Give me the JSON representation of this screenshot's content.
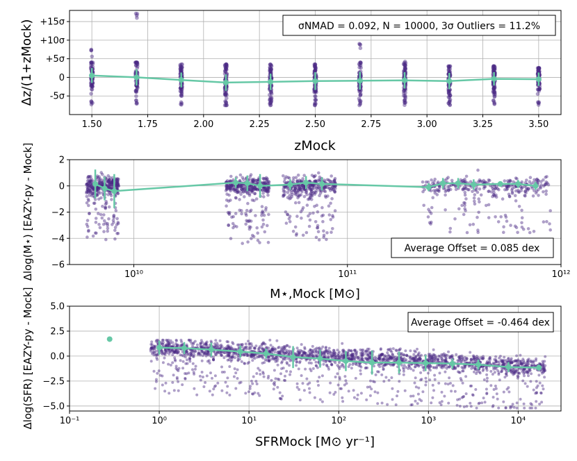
{
  "colors": {
    "scatter": "#4b2a86",
    "trend": "#66c8a6"
  },
  "chart_data": [
    {
      "type": "scatter",
      "xlabel": "zMock",
      "ylabel": "Δz/(1+zMock)",
      "xlim": [
        1.4,
        3.6
      ],
      "ylim": [
        -10,
        18
      ],
      "x_ticks": [
        "1.50",
        "1.75",
        "2.00",
        "2.25",
        "2.50",
        "2.75",
        "3.00",
        "3.25",
        "3.50"
      ],
      "y_ticks": [
        "+15σ",
        "+10σ",
        "+5σ",
        "0",
        "-5σ"
      ],
      "y_tick_values": [
        15,
        10,
        5,
        0,
        -5
      ],
      "annotation": "σNMAD = 0.092, N = 10000, 3σ Outliers = 11.2%",
      "series": [
        {
          "x": [
            1.5,
            1.7,
            1.9,
            2.1,
            2.3,
            2.5,
            2.7,
            2.9,
            3.1,
            3.3,
            3.5
          ],
          "y": [
            0.5,
            0.0,
            -0.7,
            -1.4,
            -1.2,
            -1.0,
            -0.9,
            -0.8,
            -1.0,
            -0.4,
            -0.5
          ],
          "err": [
            2.0,
            2.2,
            2.0,
            2.2,
            2.2,
            2.4,
            2.4,
            2.2,
            2.2,
            1.8,
            1.8
          ],
          "spread_low": [
            -7.5,
            -7.5,
            -7.5,
            -7.5,
            -7.5,
            -7.5,
            -7.5,
            -7.5,
            -7.5,
            -7.5,
            -7.5
          ],
          "spread_high": [
            7.5,
            17.5,
            3.5,
            3.5,
            3.5,
            3.5,
            9.5,
            4.5,
            3.0,
            3.0,
            2.5
          ]
        }
      ],
      "grid": true
    },
    {
      "type": "scatter",
      "xlabel": "M⋆,Mock [M⊙]",
      "ylabel": "Δlog(M⋆) [EAZY-py - Mock]",
      "xscale": "log",
      "xlim": [
        5000000000.0,
        1000000000000.0
      ],
      "ylim": [
        -6,
        2
      ],
      "x_ticks": [
        "10¹⁰",
        "10¹¹",
        "10¹²"
      ],
      "y_ticks": [
        "2",
        "0",
        "−2",
        "−4",
        "−6"
      ],
      "y_tick_values": [
        2,
        0,
        -2,
        -4,
        -6
      ],
      "annotation": "Average Offset = 0.085 dex",
      "clusters": [
        {
          "xmin": 6000000000.0,
          "xmax": 8500000000.0,
          "ylo": -4.1,
          "yhi": 1.5
        },
        {
          "xmin": 27000000000.0,
          "xmax": 43000000000.0,
          "ylo": -4.5,
          "yhi": 1.5
        },
        {
          "xmin": 50000000000.0,
          "xmax": 88000000000.0,
          "ylo": -4.2,
          "yhi": 1.5
        },
        {
          "xmin": 220000000000.0,
          "xmax": 900000000000.0,
          "ylo": -3.6,
          "yhi": 1.2
        }
      ],
      "series": [
        {
          "x": [
            6600000000.0,
            7300000000.0,
            8100000000.0,
            30000000000.0,
            34000000000.0,
            39000000000.0,
            54000000000.0,
            64000000000.0,
            76000000000.0,
            240000000000.0,
            280000000000.0,
            330000000000.0,
            390000000000.0,
            520000000000.0,
            630000000000.0,
            760000000000.0
          ],
          "y": [
            0.15,
            -0.2,
            -0.4,
            0.25,
            0.2,
            0.0,
            0.1,
            0.25,
            0.15,
            -0.1,
            0.2,
            0.2,
            0.1,
            0.15,
            0.15,
            0.0
          ],
          "err": [
            1.1,
            0.9,
            1.3,
            0.4,
            0.6,
            0.9,
            0.4,
            0.5,
            0.5,
            0.3,
            0.4,
            0.4,
            0.4,
            0.2,
            0.3,
            0.3
          ]
        }
      ],
      "grid": true
    },
    {
      "type": "scatter",
      "xlabel": "SFRMock [M⊙ yr⁻¹]",
      "ylabel": "Δlog(SFR) [EAZY-py - Mock]",
      "xscale": "log",
      "xlim": [
        0.1,
        30000
      ],
      "ylim": [
        -5.5,
        5
      ],
      "x_ticks": [
        "10⁻¹",
        "10⁰",
        "10¹",
        "10²",
        "10³",
        "10⁴"
      ],
      "y_ticks": [
        "5.0",
        "2.5",
        "0.0",
        "−2.5",
        "−5.0"
      ],
      "y_tick_values": [
        5.0,
        2.5,
        0.0,
        -2.5,
        -5.0
      ],
      "annotation": "Average Offset = -0.464 dex",
      "outlier_point": {
        "x": 0.28,
        "y": 1.7
      },
      "series": [
        {
          "x": [
            1.0,
            1.9,
            3.8,
            8.0,
            15.5,
            31,
            62,
            120,
            235,
            470,
            930,
            1850,
            3600,
            7800,
            17000
          ],
          "y": [
            0.85,
            0.8,
            0.65,
            0.45,
            0.25,
            -0.1,
            -0.25,
            -0.5,
            -0.65,
            -0.65,
            -0.7,
            -0.75,
            -0.85,
            -1.1,
            -1.15
          ],
          "err": [
            0.7,
            0.6,
            0.7,
            0.6,
            0.5,
            1.1,
            0.9,
            1.0,
            1.2,
            1.1,
            0.8,
            0.5,
            0.5,
            0.5,
            0.3
          ]
        }
      ],
      "grid": true
    }
  ]
}
